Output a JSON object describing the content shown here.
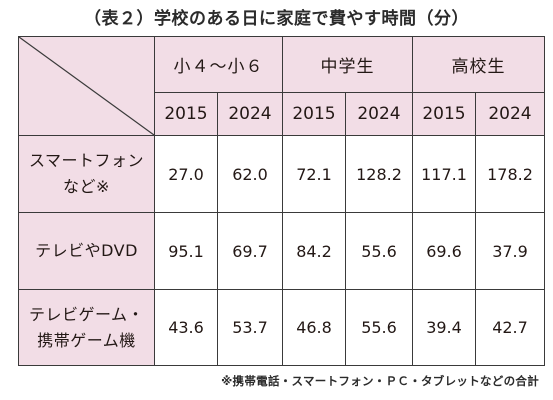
{
  "title": "（表２）学校のある日に家庭で費やす時間（分）",
  "groups": [
    {
      "label": "小４～小６"
    },
    {
      "label": "中学生"
    },
    {
      "label": "高校生"
    }
  ],
  "years": [
    "2015",
    "2024",
    "2015",
    "2024",
    "2015",
    "2024"
  ],
  "rows": [
    {
      "label_line1": "スマートフォン",
      "label_line2": "など※",
      "values": [
        "27.0",
        "62.0",
        "72.1",
        "128.2",
        "117.1",
        "178.2"
      ]
    },
    {
      "label_line1": "テレビやDVD",
      "label_line2": "",
      "values": [
        "95.1",
        "69.7",
        "84.2",
        "55.6",
        "69.6",
        "37.9"
      ]
    },
    {
      "label_line1": "テレビゲーム・",
      "label_line2": "携帯ゲーム機",
      "values": [
        "43.6",
        "53.7",
        "46.8",
        "55.6",
        "39.4",
        "42.7"
      ]
    }
  ],
  "footnote": "※携帯電話・スマートフォン・ＰＣ・タブレットなどの合計",
  "colors": {
    "header_bg": "#f2dde6",
    "border": "#3a3a3a",
    "text": "#231815"
  }
}
